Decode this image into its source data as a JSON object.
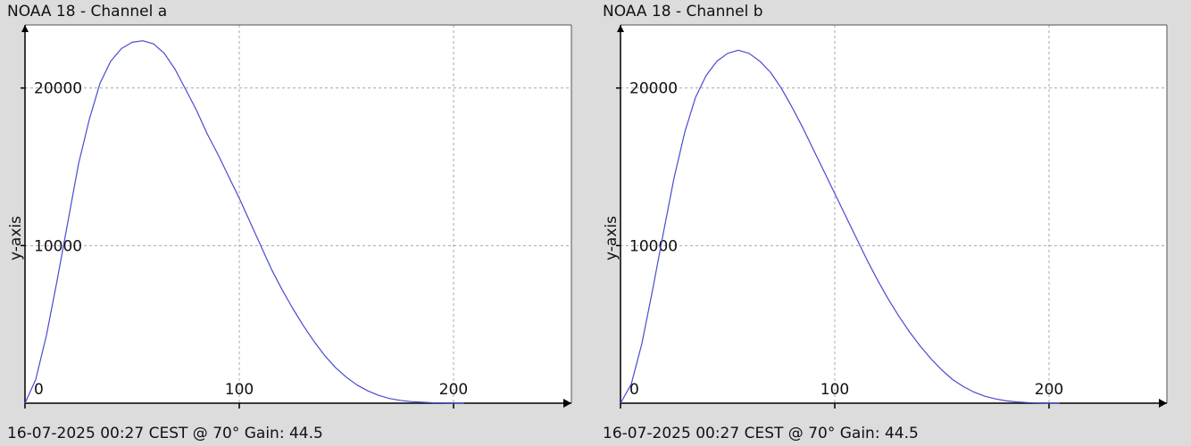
{
  "chart_data": [
    {
      "type": "line",
      "title": "NOAA 18 - Channel a",
      "ylabel": "y-axis",
      "xlabel": "",
      "footer": "16-07-2025 00:27 CEST @ 70° Gain: 44.5",
      "xlim": [
        0,
        255
      ],
      "ylim": [
        0,
        24000
      ],
      "xticks": [
        0,
        100,
        200
      ],
      "yticks": [
        10000,
        20000
      ],
      "grid": true,
      "colors": {
        "line": "#4a4ad0",
        "grid": "#a8a8a8",
        "plot_bg": "#ffffff"
      },
      "series": [
        {
          "x": [
            0,
            5,
            10,
            15,
            20,
            25,
            30,
            35,
            40,
            45,
            50,
            55,
            60,
            65,
            70,
            75,
            80,
            85,
            90,
            95,
            100,
            105,
            110,
            115,
            120,
            125,
            130,
            135,
            140,
            145,
            150,
            155,
            160,
            165,
            170,
            175,
            180,
            185,
            190,
            195,
            200,
            205
          ],
          "y": [
            0,
            1500,
            4300,
            7800,
            11500,
            15200,
            18000,
            20300,
            21700,
            22500,
            22900,
            23000,
            22800,
            22200,
            21200,
            19900,
            18600,
            17100,
            15800,
            14400,
            13000,
            11500,
            10000,
            8500,
            7200,
            6000,
            4900,
            3900,
            3000,
            2250,
            1650,
            1150,
            780,
            500,
            300,
            180,
            100,
            60,
            30,
            15,
            5,
            0
          ]
        }
      ]
    },
    {
      "type": "line",
      "title": "NOAA 18 - Channel b",
      "ylabel": "y-axis",
      "xlabel": "",
      "footer": "16-07-2025 00:27 CEST @ 70° Gain: 44.5",
      "xlim": [
        0,
        255
      ],
      "ylim": [
        0,
        24000
      ],
      "xticks": [
        0,
        100,
        200
      ],
      "yticks": [
        10000,
        20000
      ],
      "grid": true,
      "colors": {
        "line": "#4a4ad0",
        "grid": "#a8a8a8",
        "plot_bg": "#ffffff"
      },
      "series": [
        {
          "x": [
            0,
            5,
            10,
            15,
            20,
            25,
            30,
            35,
            40,
            45,
            50,
            55,
            60,
            65,
            70,
            75,
            80,
            85,
            90,
            95,
            100,
            105,
            110,
            115,
            120,
            125,
            130,
            135,
            140,
            145,
            150,
            155,
            160,
            165,
            170,
            175,
            180,
            185,
            190,
            195,
            200,
            205
          ],
          "y": [
            0,
            1200,
            3800,
            7200,
            10800,
            14300,
            17200,
            19400,
            20800,
            21700,
            22200,
            22400,
            22200,
            21700,
            21000,
            20000,
            18800,
            17500,
            16100,
            14700,
            13300,
            11900,
            10500,
            9100,
            7800,
            6600,
            5500,
            4500,
            3600,
            2800,
            2100,
            1500,
            1050,
            700,
            440,
            270,
            150,
            80,
            40,
            15,
            5,
            0
          ]
        }
      ]
    }
  ]
}
